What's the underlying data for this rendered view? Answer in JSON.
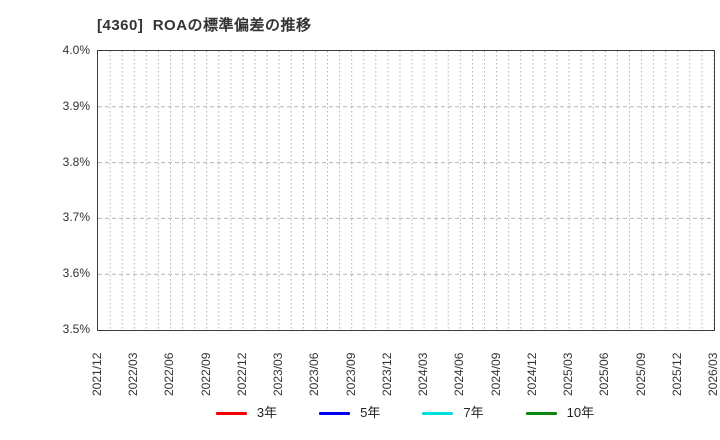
{
  "title": "[4360]  ROAの標準偏差の推移",
  "chart_data": {
    "type": "line",
    "title": "[4360]  ROAの標準偏差の推移",
    "xlabel": "",
    "ylabel": "",
    "y_unit": "%",
    "ylim": [
      3.5,
      4.0
    ],
    "y_ticks": [
      "4.0%",
      "3.9%",
      "3.8%",
      "3.7%",
      "3.6%",
      "3.5%"
    ],
    "x_start": "2021/12",
    "x_end": "2026/03",
    "x_total_months": 51,
    "x_tick_interval_months": 3,
    "x_tick_labels": [
      "2021/12",
      "2022/03",
      "2022/06",
      "2022/09",
      "2022/12",
      "2023/03",
      "2023/06",
      "2023/09",
      "2023/12",
      "2024/03",
      "2024/06",
      "2024/09",
      "2024/12",
      "2025/03",
      "2025/06",
      "2025/09",
      "2025/12",
      "2026/03"
    ],
    "grid": true,
    "grid_vertical": "monthly-dotted",
    "grid_horizontal": "dashed-at-each-0.1",
    "legend_position": "bottom",
    "series": [
      {
        "name": "3年",
        "color": "#f40000",
        "values": []
      },
      {
        "name": "5年",
        "color": "#0000f0",
        "values": []
      },
      {
        "name": "7年",
        "color": "#00dede",
        "values": []
      },
      {
        "name": "10年",
        "color": "#0d870d",
        "values": []
      }
    ],
    "note": "no data points are visible within the plotted y-range"
  },
  "colors": {
    "grid": "#b5b5b5",
    "border": "#3c3c3c",
    "text": "#333333"
  }
}
